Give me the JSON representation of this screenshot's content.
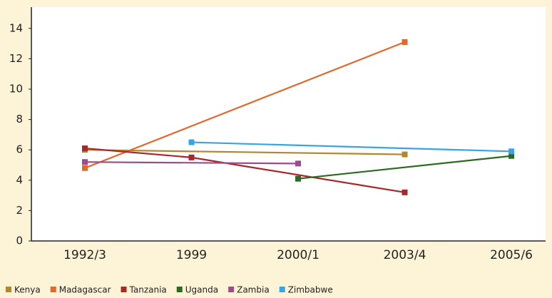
{
  "chart_data": {
    "type": "line",
    "categories": [
      "1992/3",
      "1999",
      "2000/1",
      "2003/4",
      "2005/6"
    ],
    "series": [
      {
        "name": "Kenya",
        "color": "#b5872c",
        "values": [
          6.0,
          null,
          null,
          5.7,
          null
        ]
      },
      {
        "name": "Madagascar",
        "color": "#e0692b",
        "values": [
          4.8,
          null,
          null,
          13.1,
          null
        ]
      },
      {
        "name": "Tanzania",
        "color": "#a5282b",
        "values": [
          6.1,
          5.5,
          null,
          3.2,
          null
        ]
      },
      {
        "name": "Uganda",
        "color": "#2b6a1f",
        "values": [
          null,
          null,
          4.1,
          null,
          5.6
        ]
      },
      {
        "name": "Zambia",
        "color": "#9a4c8f",
        "values": [
          5.2,
          null,
          5.1,
          null,
          null
        ]
      },
      {
        "name": "Zimbabwe",
        "color": "#3aa3e3",
        "values": [
          null,
          6.5,
          null,
          null,
          5.9
        ]
      }
    ],
    "ylim": [
      0,
      15.4
    ],
    "yticks": [
      0,
      2,
      4,
      6,
      8,
      10,
      12,
      14
    ]
  }
}
